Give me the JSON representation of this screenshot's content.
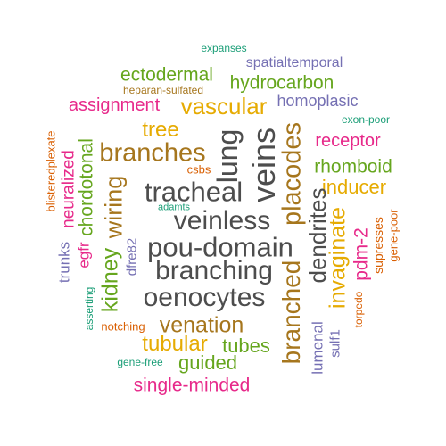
{
  "palette": {
    "gray": "#4d4d4d",
    "brown": "#a6761d",
    "gold": "#e6ab02",
    "magenta": "#e7298a",
    "green": "#66a61e",
    "purple": "#7570b3",
    "orange": "#d95f02",
    "teal": "#1b9e77"
  },
  "words": [
    {
      "id": "expanses",
      "text": "expanses"
    },
    {
      "id": "spatialtemporal",
      "text": "spatialtemporal"
    },
    {
      "id": "ectodermal",
      "text": "ectodermal"
    },
    {
      "id": "hydrocarbon",
      "text": "hydrocarbon"
    },
    {
      "id": "heparan-sulfated",
      "text": "heparan-sulfated"
    },
    {
      "id": "assignment",
      "text": "assignment"
    },
    {
      "id": "vascular",
      "text": "vascular"
    },
    {
      "id": "homoplasic",
      "text": "homoplasic"
    },
    {
      "id": "exon-poor",
      "text": "exon-poor"
    },
    {
      "id": "tree",
      "text": "tree"
    },
    {
      "id": "receptor",
      "text": "receptor"
    },
    {
      "id": "branches",
      "text": "branches"
    },
    {
      "id": "lung",
      "text": "lung"
    },
    {
      "id": "veins",
      "text": "veins"
    },
    {
      "id": "placodes",
      "text": "placodes"
    },
    {
      "id": "csbs",
      "text": "csbs"
    },
    {
      "id": "rhomboid",
      "text": "rhomboid"
    },
    {
      "id": "inducer",
      "text": "inducer"
    },
    {
      "id": "tracheal",
      "text": "tracheal"
    },
    {
      "id": "adamts",
      "text": "adamts"
    },
    {
      "id": "veinless",
      "text": "veinless"
    },
    {
      "id": "pou-domain",
      "text": "pou-domain"
    },
    {
      "id": "branching",
      "text": "branching"
    },
    {
      "id": "oenocytes",
      "text": "oenocytes"
    },
    {
      "id": "venation",
      "text": "venation"
    },
    {
      "id": "tubular",
      "text": "tubular"
    },
    {
      "id": "tubes",
      "text": "tubes"
    },
    {
      "id": "guided",
      "text": "guided"
    },
    {
      "id": "single-minded",
      "text": "single-minded"
    },
    {
      "id": "notching",
      "text": "notching"
    },
    {
      "id": "gene-free",
      "text": "gene-free"
    },
    {
      "id": "blisteredplexate",
      "text": "blisteredplexate"
    },
    {
      "id": "neuralized",
      "text": "neuralized"
    },
    {
      "id": "chordotonal",
      "text": "chordotonal"
    },
    {
      "id": "wiring",
      "text": "wiring"
    },
    {
      "id": "trunks",
      "text": "trunks"
    },
    {
      "id": "egfr",
      "text": "egfr"
    },
    {
      "id": "kidney",
      "text": "kidney"
    },
    {
      "id": "dfre82",
      "text": "dfre82"
    },
    {
      "id": "asserting",
      "text": "asserting"
    },
    {
      "id": "branched",
      "text": "branched"
    },
    {
      "id": "dendrites",
      "text": "dendrites"
    },
    {
      "id": "invaginate",
      "text": "invaginate"
    },
    {
      "id": "lumenal",
      "text": "lumenal"
    },
    {
      "id": "sulf1",
      "text": "sulf1"
    },
    {
      "id": "pdm-2",
      "text": "pdm-2"
    },
    {
      "id": "torpedo",
      "text": "torpedo"
    },
    {
      "id": "supresses",
      "text": "supresses"
    },
    {
      "id": "gene-poor",
      "text": "gene-poor"
    }
  ]
}
